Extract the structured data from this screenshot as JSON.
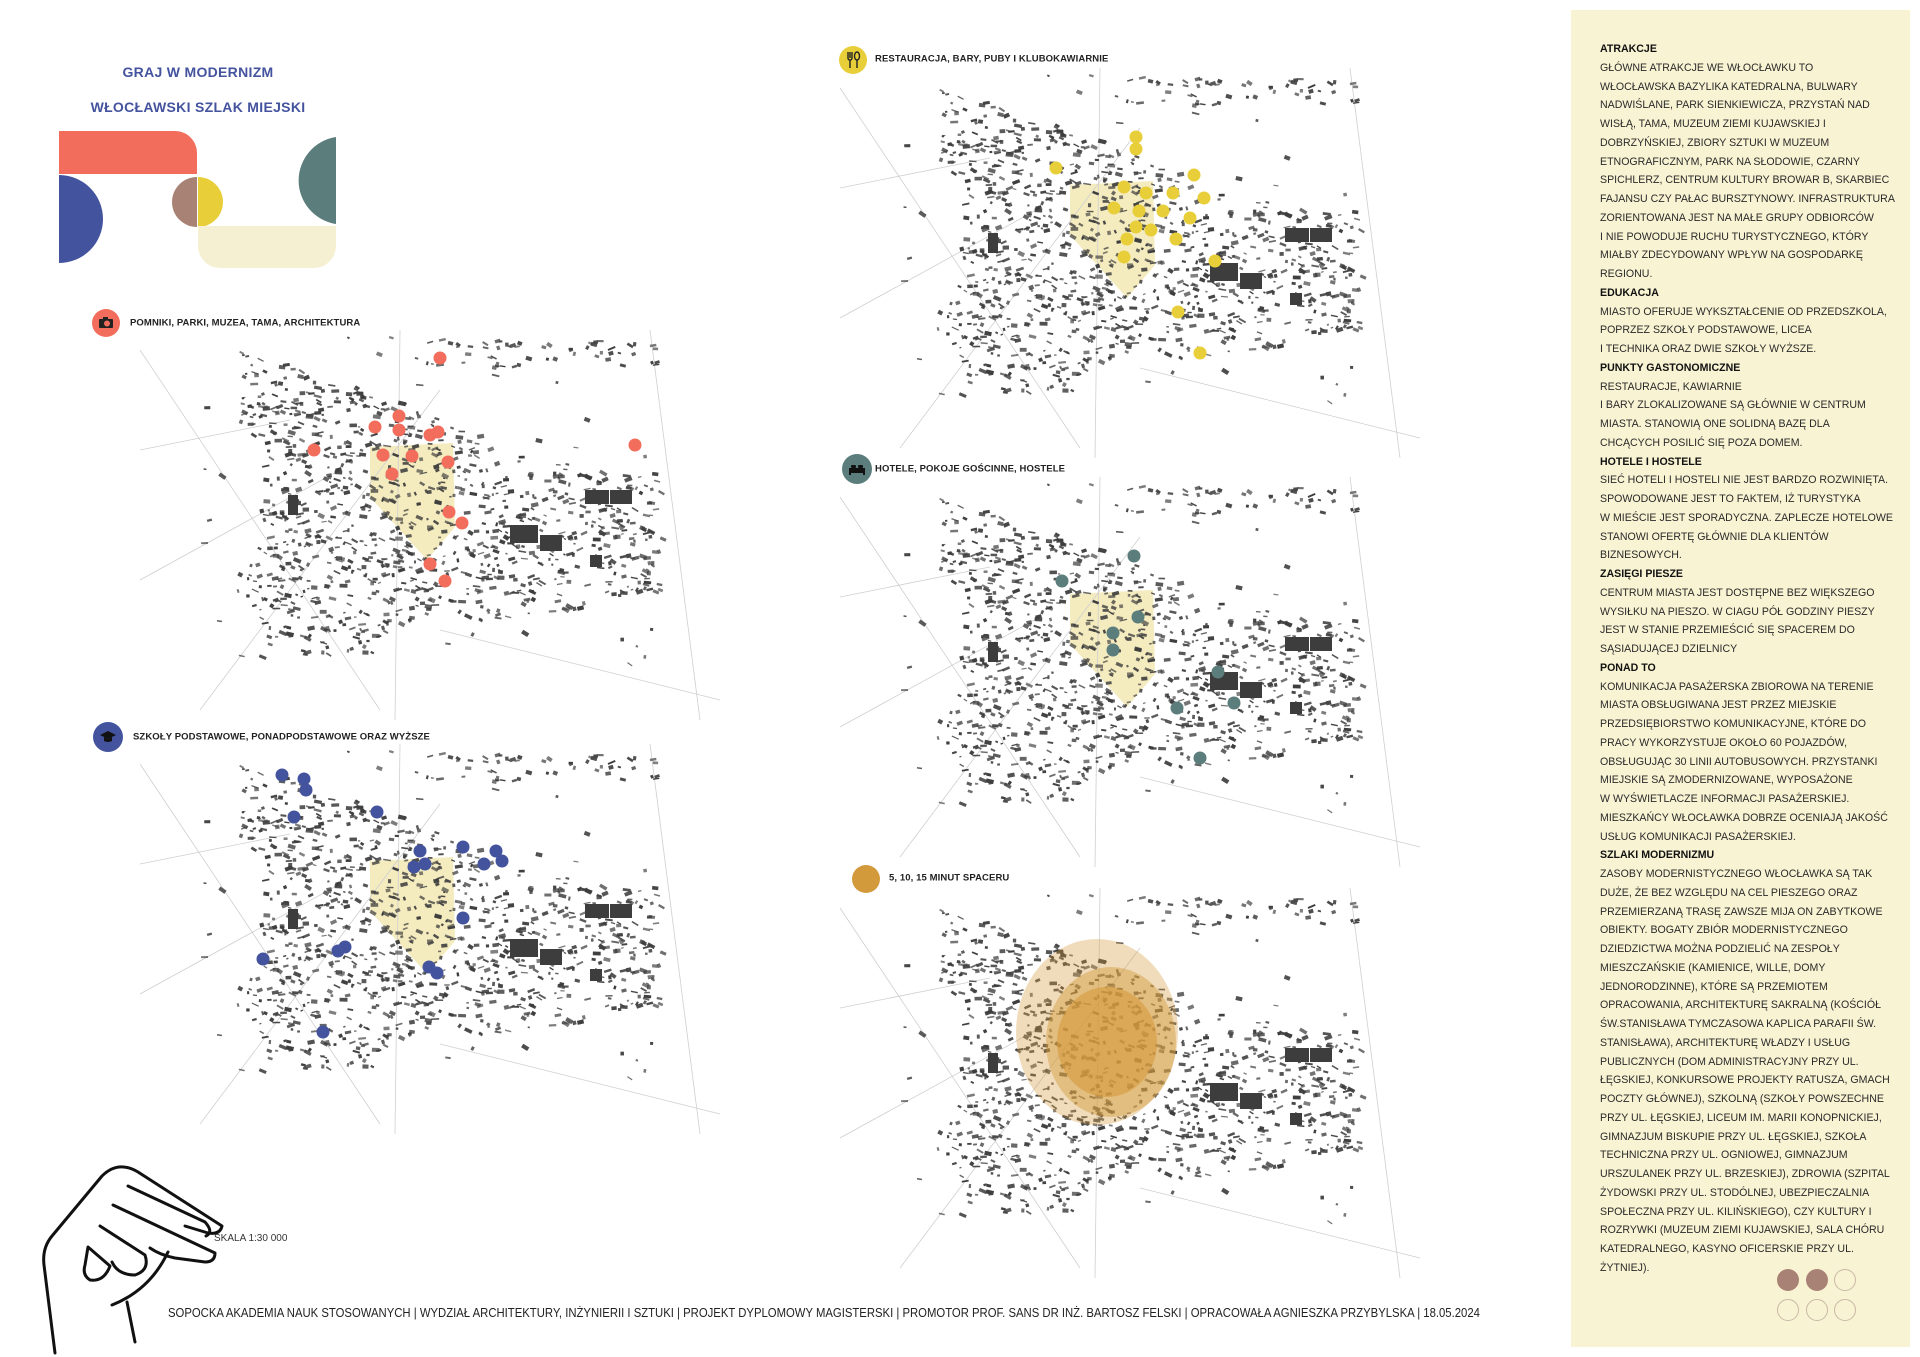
{
  "header": {
    "title": "GRAJ W MODERNIZM",
    "subtitle": "WŁOCŁAWSKI SZLAK MIEJSKI"
  },
  "colors": {
    "attractions": "#f26d5b",
    "schools": "#44539e",
    "restaurants": "#e8cf3a",
    "hotels": "#5b7d7b",
    "walk": "#d39a3c",
    "logo_brown": "#a98276",
    "logo_cream": "#f6f0d2",
    "center_zone": "#f3e9b8",
    "panel_bg": "#f8f3d3"
  },
  "maps": [
    {
      "legend": "POMNIKI, PARKI, MUZEA, TAMA, ARCHITEKTURA",
      "icon": "camera-icon"
    },
    {
      "legend": "RESTAURACJA, BARY, PUBY I KLUBOKAWIARNIE",
      "icon": "fork-spoon-icon"
    },
    {
      "legend": "SZKOŁY PODSTAWOWE, PONADPODSTAWOWE ORAZ WYŻSZE",
      "icon": "graduation-cap-icon"
    },
    {
      "legend": "HOTELE, POKOJE GOŚCINNE, HOSTELE",
      "icon": "bed-icon"
    },
    {
      "legend": "5, 10, 15 MINUT SPACERU",
      "icon": "circle-icon"
    }
  ],
  "scale": "SKALA 1:30 000",
  "footer": "SOPOCKA AKADEMIA NAUK STOSOWANYCH | WYDZIAŁ ARCHITEKTURY, INŻYNIERII I SZTUKI | PROJEKT DYPLOMOWY MAGISTERSKI | PROMOTOR PROF. SANS DR INŻ. BARTOSZ FELSKI | OPRACOWAŁA AGNIESZKA PRZYBYLSKA | 18.05.2024",
  "panel": {
    "sections": [
      {
        "heading": "ATRAKCJE",
        "lines": [
          "GŁÓWNE ATRAKCJE WE WŁOCŁAWKU TO",
          "WŁOCŁAWSKA BAZYLIKA KATEDRALNA, BULWARY",
          "NADWIŚLANE, PARK SIENKIEWICZA, PRZYSTAŃ NAD",
          "WISŁĄ, TAMA, MUZEUM ZIEMI KUJAWSKIEJ I",
          "DOBRZYŃSKIEJ, ZBIORY SZTUKI W MUZEUM",
          "ETNOGRAFICZNYM, PARK NA SŁODOWIE, CZARNY",
          "SPICHLERZ, CENTRUM KULTURY BROWAR B, SKARBIEC",
          "FAJANSU CZY PAŁAC BURSZTYNOWY. INFRASTRUKTURA",
          "ZORIENTOWANA JEST NA MAŁE GRUPY ODBIORCÓW",
          "I NIE POWODUJE RUCHU TURYSTYCZNEGO, KTÓRY",
          "MIAŁBY ZDECYDOWANY WPŁYW NA GOSPODARKĘ",
          "REGIONU."
        ]
      },
      {
        "heading": "EDUKACJA",
        "lines": [
          "MIASTO OFERUJE WYKSZTAŁCENIE OD PRZEDSZKOLA,",
          "POPRZEZ SZKOŁY PODSTAWOWE, LICEA",
          "I TECHNIKA ORAZ DWIE SZKOŁY WYŻSZE."
        ]
      },
      {
        "heading": "PUNKTY GASTONOMICZNE",
        "lines": [
          "RESTAURACJE, KAWIARNIE",
          "I BARY ZLOKALIZOWANE SĄ GŁÓWNIE W CENTRUM",
          "MIASTA. STANOWIĄ ONE SOLIDNĄ BAZĘ DLA",
          "CHCĄCYCH POSILIĆ SIĘ POZA DOMEM."
        ]
      },
      {
        "heading": "HOTELE I HOSTELE",
        "lines": [
          "SIEĆ HOTELI I HOSTELI NIE JEST BARDZO ROZWINIĘTA.",
          "SPOWODOWANE JEST TO FAKTEM, IŻ TURYSTYKA",
          "W MIEŚCIE JEST SPORADYCZNA.  ZAPLECZE HOTELOWE",
          "STANOWI OFERTĘ GŁÓWNIE DLA KLIENTÓW",
          "BIZNESOWYCH."
        ]
      },
      {
        "heading": "ZASIĘGI PIESZE",
        "lines": [
          "CENTRUM MIASTA JEST DOSTĘPNE BEZ WIĘKSZEGO",
          "WYSIŁKU NA PIESZO. W CIAGU PÓŁ GODZINY PIESZY",
          "JEST W STANIE PRZEMIEŚCIĆ SIĘ SPACEREM DO",
          "SĄSIADUJĄCEJ DZIELNICY"
        ]
      },
      {
        "heading": "PONAD TO",
        "lines": [
          "KOMUNIKACJA PASAŻERSKA ZBIOROWA NA TERENIE",
          "MIASTA OBSŁUGIWANA JEST PRZEZ MIEJSKIE",
          "PRZEDSIĘBIORSTWO KOMUNIKACYJNE, KTÓRE DO",
          "PRACY WYKORZYSTUJE OKOŁO 60 POJAZDÓW,",
          "OBSŁUGUJĄC 30 LINII AUTOBUSOWYCH. PRZYSTANKI",
          "MIEJSKIE SĄ ZMODERNIZOWANE, WYPOSAŻONE",
          "W WYŚWIETLACZE INFORMACJI PASAŻERSKIEJ.",
          "MIESZKAŃCY WŁOCŁAWKA DOBRZE OCENIAJĄ JAKOŚĆ",
          "USŁUG KOMUNIKACJI PASAŻERSKIEJ."
        ]
      },
      {
        "heading": "SZLAKI MODERNIZMU",
        "lines": [
          "ZASOBY MODERNISTYCZNEGO WŁOCŁAWKA SĄ TAK",
          "DUŻE, ŻE BEZ WZGLĘDU NA CEL PIESZEGO ORAZ",
          "PRZEMIERZANĄ TRASĘ ZAWSZE MIJA ON ZABYTKOWE",
          "OBIEKTY. BOGATY ZBIÓR MODERNISTYCZNEGO",
          "DZIEDZICTWA MOŻNA PODZIELIĆ NA ZESPOŁY",
          "MIESZCZAŃSKIE (KAMIENICE, WILLE, DOMY",
          "JEDNORODZINNE), KTÓRE SĄ PRZEMIOTEM",
          "OPRACOWANIA, ARCHITEKTURĘ SAKRALNĄ (KOŚCIÓŁ",
          "ŚW.STANISŁAWA TYMCZASOWA KAPLICA PARAFII ŚW.",
          "STANISŁAWA), ARCHITEKTURĘ WŁADZY I USŁUG",
          "PUBLICZNYCH (DOM ADMINISTRACYJNY PRZY UL.",
          "ŁĘGSKIEJ, KONKURSOWE PROJEKTY RATUSZA, GMACH",
          "POCZTY GŁÓWNEJ), SZKOLNĄ (SZKOŁY POWSZECHNE",
          "PRZY UL. ŁĘGSKIEJ, LICEUM IM. MARII KONOPNICKIEJ,",
          "GIMNAZJUM BISKUPIE PRZY UL. ŁĘGSKIEJ, SZKOŁA",
          "TECHNICZNA PRZY UL. OGNIOWEJ, GIMNAZJUM",
          "URSZULANEK PRZY UL. BRZESKIEJ), ZDROWIA (SZPITAL",
          "ŻYDOWSKI PRZY UL. STODÓLNEJ, UBEZPIECZALNIA",
          "SPOŁECZNA PRZY UL. KILIŃSKIEGO), CZY KULTURY I",
          "ROZRYWKI (MUZEUM ZIEMI KUJAWSKIEJ, SALA CHÓRU",
          "KATEDRALNEGO, KASYNO OFICERSKIE PRZY UL.",
          "ŻYTNIEJ)."
        ]
      }
    ],
    "page_dots_filled": 2,
    "page_dots_total": 6
  }
}
